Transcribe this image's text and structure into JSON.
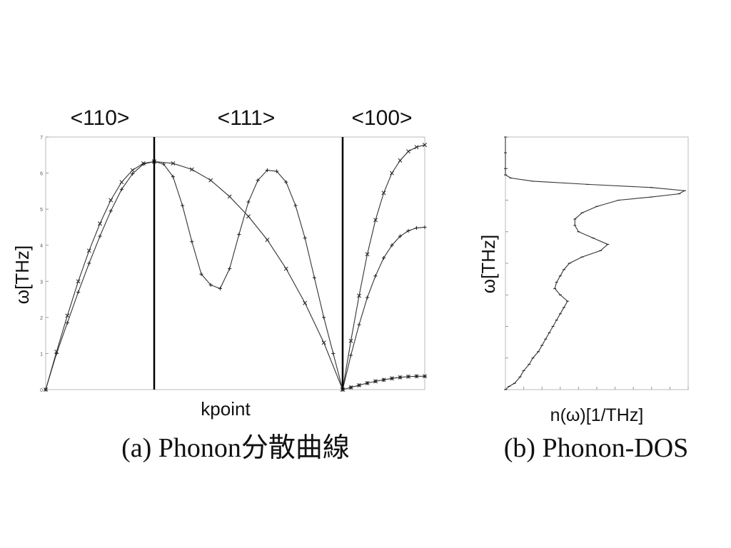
{
  "chart_data": [
    {
      "type": "line",
      "caption": "(a) Phonon分散曲線",
      "xlabel": "kpoint",
      "ylabel": "ω[THz]",
      "ylim": [
        0,
        7
      ],
      "yticks": [
        "0",
        "1",
        "2",
        "3",
        "4",
        "5",
        "6",
        "7"
      ],
      "direction_labels": [
        "<110>",
        "<111>",
        "<100>"
      ],
      "segments": [
        {
          "direction": "<110>",
          "series": [
            {
              "x": [
                0,
                0.1,
                0.2,
                0.3,
                0.4,
                0.5,
                0.6,
                0.7,
                0.8,
                0.9,
                1.0
              ],
              "y": [
                0,
                1.05,
                2.05,
                3.0,
                3.85,
                4.6,
                5.25,
                5.75,
                6.08,
                6.27,
                6.32
              ]
            },
            {
              "x": [
                0,
                0.1,
                0.2,
                0.3,
                0.4,
                0.5,
                0.6,
                0.7,
                0.8,
                0.9,
                1.0
              ],
              "y": [
                0,
                1.0,
                1.85,
                2.7,
                3.5,
                4.25,
                4.95,
                5.55,
                5.98,
                6.25,
                6.32
              ]
            }
          ]
        },
        {
          "direction": "<111>",
          "series": [
            {
              "x": [
                0,
                0.1,
                0.2,
                0.3,
                0.4,
                0.5,
                0.6,
                0.7,
                0.8,
                0.9,
                1.0
              ],
              "y": [
                6.32,
                6.27,
                6.1,
                5.8,
                5.35,
                4.8,
                4.15,
                3.35,
                2.4,
                1.3,
                0
              ]
            },
            {
              "x": [
                0,
                0.05,
                0.1,
                0.15,
                0.2,
                0.25,
                0.3,
                0.35,
                0.4,
                0.45,
                0.5,
                0.55,
                0.6,
                0.65,
                0.7,
                0.75,
                0.8,
                0.85,
                0.9,
                0.95,
                1.0
              ],
              "y": [
                6.32,
                6.25,
                5.9,
                5.1,
                4.1,
                3.2,
                2.9,
                2.8,
                3.35,
                4.3,
                5.2,
                5.8,
                6.08,
                6.05,
                5.75,
                5.1,
                4.2,
                3.1,
                2.0,
                1.0,
                0
              ]
            }
          ]
        },
        {
          "direction": "<100>",
          "series": [
            {
              "x": [
                0,
                0.1,
                0.2,
                0.3,
                0.4,
                0.5,
                0.6,
                0.7,
                0.8,
                0.9,
                1.0
              ],
              "y": [
                0,
                1.35,
                2.6,
                3.75,
                4.7,
                5.45,
                6.0,
                6.35,
                6.6,
                6.72,
                6.78
              ]
            },
            {
              "x": [
                0,
                0.1,
                0.2,
                0.3,
                0.4,
                0.5,
                0.6,
                0.7,
                0.8,
                0.9,
                1.0
              ],
              "y": [
                0,
                0.95,
                1.8,
                2.55,
                3.15,
                3.65,
                4.0,
                4.25,
                4.4,
                4.48,
                4.5
              ]
            },
            {
              "x": [
                0,
                0.1,
                0.2,
                0.3,
                0.4,
                0.5,
                0.6,
                0.7,
                0.8,
                0.9,
                1.0
              ],
              "y": [
                0,
                0.06,
                0.12,
                0.18,
                0.23,
                0.27,
                0.31,
                0.34,
                0.36,
                0.37,
                0.37
              ]
            }
          ]
        }
      ]
    },
    {
      "type": "line",
      "caption": "(b) Phonon-DOS",
      "xlabel": "n(ω)[1/THz]",
      "ylabel": "ω[THz]",
      "ylim": [
        0,
        8
      ],
      "xlim": [
        0,
        1.0
      ],
      "series": [
        {
          "omega": [
            0,
            0.1,
            0.2,
            0.4,
            0.6,
            0.8,
            1.0,
            1.2,
            1.4,
            1.6,
            1.8,
            2.0,
            2.2,
            2.4,
            2.6,
            2.8,
            3.0,
            3.2,
            3.4,
            3.6,
            3.8,
            4.0,
            4.2,
            4.4,
            4.6,
            4.8,
            5.0,
            5.2,
            5.4,
            5.6,
            5.8,
            6.0,
            6.1,
            6.2,
            6.3,
            6.4,
            6.5,
            6.6,
            6.7,
            6.8,
            7.0,
            7.5,
            8.0
          ],
          "n": [
            0.0,
            0.02,
            0.05,
            0.08,
            0.1,
            0.13,
            0.15,
            0.18,
            0.2,
            0.22,
            0.24,
            0.26,
            0.28,
            0.3,
            0.32,
            0.34,
            0.3,
            0.27,
            0.28,
            0.3,
            0.32,
            0.35,
            0.42,
            0.52,
            0.56,
            0.48,
            0.4,
            0.38,
            0.38,
            0.42,
            0.5,
            0.62,
            0.8,
            0.95,
            0.98,
            0.8,
            0.45,
            0.15,
            0.03,
            0.0,
            0.0,
            0.0,
            0.0
          ]
        }
      ]
    }
  ]
}
